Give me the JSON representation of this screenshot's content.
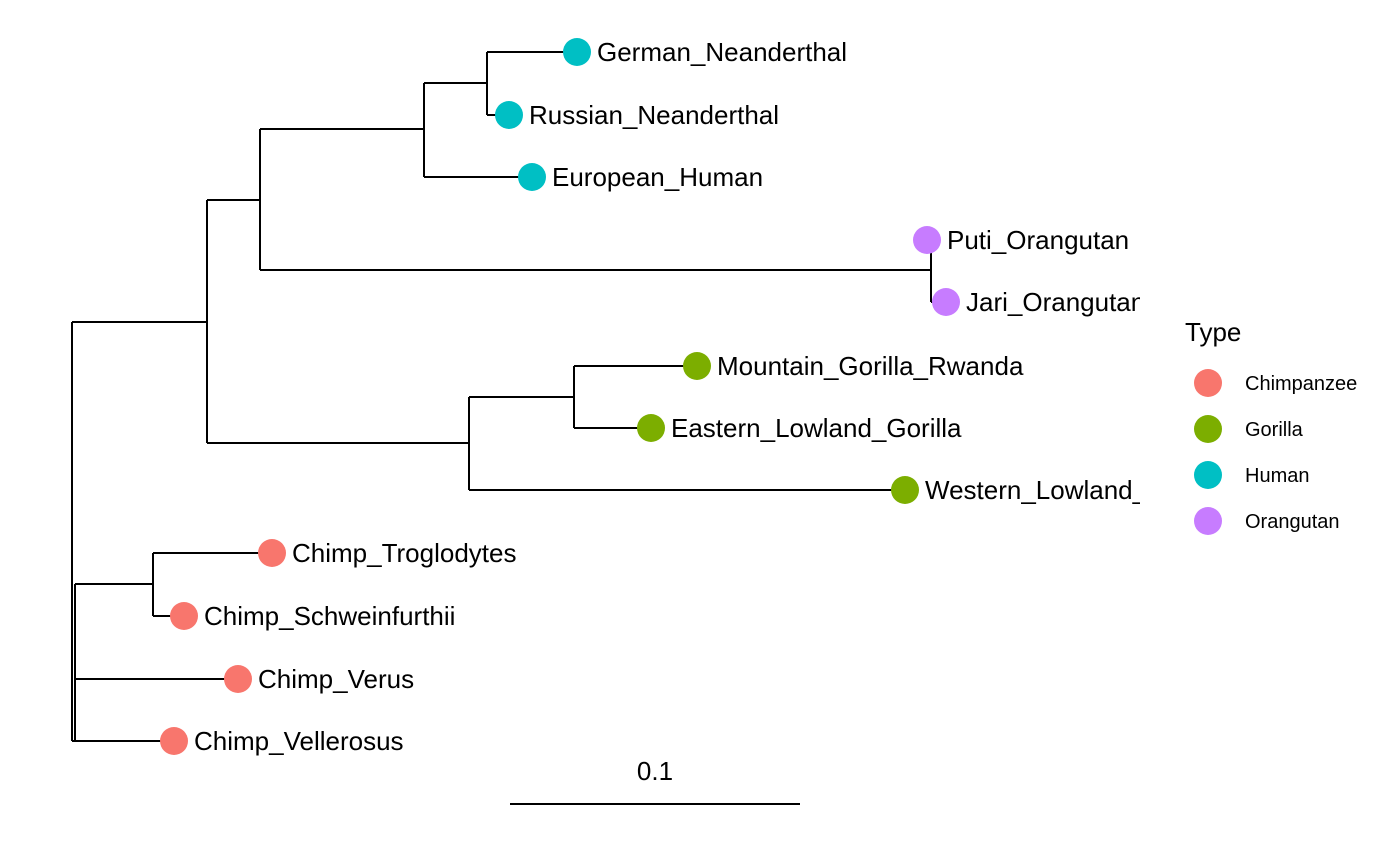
{
  "colors": {
    "Chimpanzee": "#F8766D",
    "Gorilla": "#7CAE00",
    "Human": "#00BFC4",
    "Orangutan": "#C77CFF"
  },
  "tips": [
    {
      "label": "German_Neanderthal",
      "type": "Human"
    },
    {
      "label": "Russian_Neanderthal",
      "type": "Human"
    },
    {
      "label": "European_Human",
      "type": "Human"
    },
    {
      "label": "Puti_Orangutan",
      "type": "Orangutan"
    },
    {
      "label": "Jari_Orangutan",
      "type": "Orangutan"
    },
    {
      "label": "Mountain_Gorilla_Rwanda",
      "type": "Gorilla"
    },
    {
      "label": "Eastern_Lowland_Gorilla",
      "type": "Gorilla"
    },
    {
      "label": "Western_Lowland_Gorilla",
      "type": "Gorilla"
    },
    {
      "label": "Chimp_Troglodytes",
      "type": "Chimpanzee"
    },
    {
      "label": "Chimp_Schweinfurthii",
      "type": "Chimpanzee"
    },
    {
      "label": "Chimp_Verus",
      "type": "Chimpanzee"
    },
    {
      "label": "Chimp_Vellerosus",
      "type": "Chimpanzee"
    }
  ],
  "legend": {
    "title": "Type",
    "items": [
      "Chimpanzee",
      "Gorilla",
      "Human",
      "Orangutan"
    ]
  },
  "scale_bar": {
    "label": "0.1",
    "length": 0.1
  }
}
